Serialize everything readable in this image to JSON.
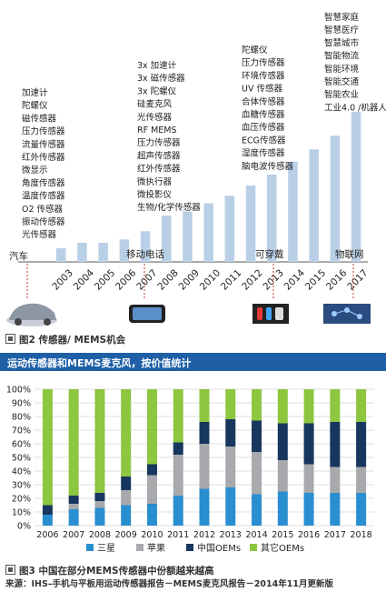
{
  "chart_data": [
    {
      "type": "bar",
      "categories": [
        "2003",
        "2004",
        "2005",
        "2006",
        "2007",
        "2008",
        "2009",
        "2010",
        "2011",
        "2012",
        "2013",
        "2014",
        "2015",
        "2016",
        "2017"
      ],
      "values": [
        20,
        28,
        28,
        33,
        45,
        68,
        74,
        86,
        97,
        112,
        128,
        147,
        165,
        185,
        220
      ],
      "color": "#b9cfe6",
      "milestones": [
        {
          "label": "汽车",
          "after_category": "2003"
        },
        {
          "label": "移动电话",
          "after_category": "2007"
        },
        {
          "label": "可穿戴",
          "after_category": "2013"
        },
        {
          "label": "物联网",
          "after_category": "2017"
        }
      ],
      "annotations": [
        {
          "category": "2003",
          "lines": [
            "加速计",
            "陀螺仪",
            "磁传感器",
            "压力传感器",
            "流量传感器",
            "红外传感器",
            "微显示",
            "角度传感器",
            "温度传感器",
            "O2 传感器",
            "振动传感器",
            "光传感器"
          ]
        },
        {
          "category": "2008",
          "lines": [
            "3x 加速计",
            "3x 磁传感器",
            "3x 陀螺仪",
            "硅麦克风",
            "光传感器",
            "RF MEMS",
            "压力传感器",
            "超声传感器",
            "红外传感器",
            "微执行器",
            "微投影仪",
            "生物/化学传感器"
          ]
        },
        {
          "category": "2013",
          "lines": [
            "陀螺仪",
            "压力传感器",
            "环境传感器",
            "UV 传感器",
            "合体传感器",
            "血糖传感器",
            "血压传感器",
            "ECG传感器",
            "湿度传感器",
            "脑电波传感器"
          ]
        },
        {
          "category": "2016",
          "lines": [
            "智慧家庭",
            "智慧医疗",
            "智慧城市",
            "智能物流",
            "智能环境",
            "智能交通",
            "智能农业",
            "工业4.0 /机器人"
          ]
        }
      ],
      "caption": "图2  传感器/ MEMS机会"
    },
    {
      "type": "bar",
      "stacked": true,
      "percent": true,
      "title": "运动传感器和MEMS麦克风，按价值统计",
      "categories": [
        "2006",
        "2007",
        "2008",
        "2009",
        "2010",
        "2011",
        "2012",
        "2013",
        "2014",
        "2015",
        "2016",
        "2017",
        "2018"
      ],
      "yticks": [
        "0%",
        "10%",
        "20%",
        "30%",
        "40%",
        "50%",
        "60%",
        "70%",
        "80%",
        "90%",
        "100%"
      ],
      "ylim": [
        0,
        100
      ],
      "grid": true,
      "legend_position": "bottom",
      "series": [
        {
          "name": "三星",
          "color": "#2a8fd0",
          "values": [
            8,
            12,
            13,
            15,
            16,
            22,
            27,
            28,
            23,
            25,
            24,
            24,
            24
          ]
        },
        {
          "name": "苹果",
          "color": "#a7a9ac",
          "values": [
            0,
            4,
            5,
            11,
            21,
            30,
            33,
            30,
            31,
            23,
            21,
            19,
            19
          ]
        },
        {
          "name": "中国OEMs",
          "color": "#17375e",
          "values": [
            7,
            6,
            6,
            10,
            8,
            9,
            16,
            20,
            23,
            27,
            30,
            33,
            33
          ]
        },
        {
          "name": "其它OEMs",
          "color": "#8dc63f",
          "values": [
            85,
            78,
            76,
            64,
            55,
            39,
            24,
            22,
            23,
            25,
            25,
            24,
            24
          ]
        }
      ],
      "caption": "图3  中国在部分MEMS传感器中份额越来越高"
    }
  ],
  "source": "来源：IHS–手机与平板用运动传感器报告－MEMS麦克风报告－2014年11月更新版"
}
